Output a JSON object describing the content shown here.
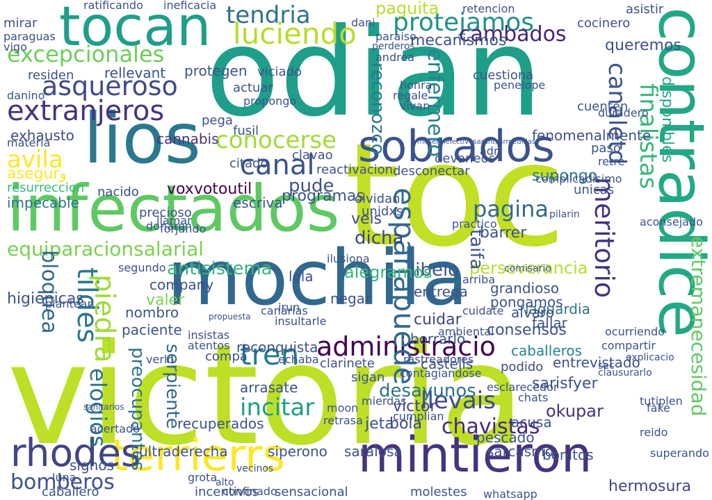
{
  "words": [
    {
      "text": "victoria",
      "color": "#bddf26",
      "vertical": false
    },
    {
      "text": "odian",
      "color": "#1f9e89",
      "vertical": false
    },
    {
      "text": "toc",
      "color": "#c2df23",
      "vertical": false
    },
    {
      "text": "mochila",
      "color": "#31688e",
      "vertical": false
    },
    {
      "text": "contradice",
      "color": "#22a884",
      "vertical": true
    },
    {
      "text": "infectados",
      "color": "#5ec962",
      "vertical": false
    },
    {
      "text": "lios",
      "color": "#2a788e",
      "vertical": false
    },
    {
      "text": "tocan",
      "color": "#1f9e89",
      "vertical": false
    },
    {
      "text": "sobrados",
      "color": "#3b528b",
      "vertical": false
    },
    {
      "text": "mintieron",
      "color": "#46337e",
      "vertical": false
    },
    {
      "text": "terrierrs",
      "color": "#fde725",
      "vertical": false
    },
    {
      "text": "rhodes",
      "color": "#414487",
      "vertical": false
    },
    {
      "text": "extranjeros",
      "color": "#46337e",
      "vertical": false
    },
    {
      "text": "excepcionales",
      "color": "#6ece58",
      "vertical": false
    },
    {
      "text": "asqueroso",
      "color": "#3e4a89",
      "vertical": false
    },
    {
      "text": "equiparacionsalarial",
      "color": "#7ad151",
      "vertical": false
    },
    {
      "text": "luciendo",
      "color": "#b5de2b",
      "vertical": false
    },
    {
      "text": "tendria",
      "color": "#2c728e",
      "vertical": false
    },
    {
      "text": "protejamos",
      "color": "#21918c",
      "vertical": false
    },
    {
      "text": "conocerse",
      "color": "#a0da39",
      "vertical": false
    },
    {
      "text": "canal",
      "color": "#3b528b",
      "vertical": false
    },
    {
      "text": "avila",
      "color": "#fde725",
      "vertical": false
    },
    {
      "text": "administracio",
      "color": "#440154",
      "vertical": false
    },
    {
      "text": "tren",
      "color": "#2a788e",
      "vertical": false
    },
    {
      "text": "incitar",
      "color": "#1f9e89",
      "vertical": false
    },
    {
      "text": "llevais",
      "color": "#3e4a89",
      "vertical": false
    },
    {
      "text": "bomberos",
      "color": "#3b528b",
      "vertical": false
    },
    {
      "text": "espanapuede",
      "color": "#31688e",
      "vertical": true
    },
    {
      "text": "cambados",
      "color": "#482475",
      "vertical": false
    },
    {
      "text": "mecanismos",
      "color": "#3b528b",
      "vertical": false
    },
    {
      "text": "enfermero",
      "color": "#26828e",
      "vertical": true
    },
    {
      "text": "reconozco",
      "color": "#2a788e",
      "vertical": true
    },
    {
      "text": "finalistas",
      "color": "#35b779",
      "vertical": true
    },
    {
      "text": "canaletd",
      "color": "#3b528b",
      "vertical": true
    },
    {
      "text": "pagina",
      "color": "#31688e",
      "vertical": false
    },
    {
      "text": "perseverancia",
      "color": "#b5de2b",
      "vertical": false
    },
    {
      "text": "antisistema",
      "color": "#35b779",
      "vertical": false
    },
    {
      "text": "voxvotoutil",
      "color": "#440154",
      "vertical": false
    },
    {
      "text": "supongo",
      "color": "#2c728e",
      "vertical": false
    },
    {
      "text": "paguita",
      "color": "#b5de2b",
      "vertical": false
    },
    {
      "text": "chavistas",
      "color": "#482878",
      "vertical": false
    },
    {
      "text": "desayunos",
      "color": "#2c728e",
      "vertical": false
    },
    {
      "text": "hermosura",
      "color": "#414487",
      "vertical": false
    },
    {
      "text": "tildes",
      "color": "#2a788e",
      "vertical": true
    },
    {
      "text": "bloquea",
      "color": "#31688e",
      "vertical": true
    },
    {
      "text": "piedra",
      "color": "#a0da39",
      "vertical": true
    },
    {
      "text": "elogios",
      "color": "#2c728e",
      "vertical": true
    },
    {
      "text": "pude",
      "color": "#3b528b",
      "vertical": false
    },
    {
      "text": "dicha",
      "color": "#414487",
      "vertical": false
    },
    {
      "text": "libelo",
      "color": "#3b528b",
      "vertical": false
    },
    {
      "text": "veis",
      "color": "#3e4a89",
      "vertical": false
    },
    {
      "text": "higienicas",
      "color": "#3b528b",
      "vertical": false
    },
    {
      "text": "exhausto",
      "color": "#3e4a89",
      "vertical": false
    },
    {
      "text": "cannabis",
      "color": "#46337e",
      "vertical": false
    },
    {
      "text": "asegurو",
      "color": "#fde725",
      "vertical": false
    },
    {
      "text": "resurreccion",
      "color": "#35b779",
      "vertical": false
    },
    {
      "text": "precioso",
      "color": "#3b528b",
      "vertical": false
    },
    {
      "text": "impecable",
      "color": "#2c728e",
      "vertical": false
    },
    {
      "text": "nacido",
      "color": "#3e4a89",
      "vertical": false
    },
    {
      "text": "rellevant",
      "color": "#3b528b",
      "vertical": false
    },
    {
      "text": "meritorio",
      "color": "#46337e",
      "vertical": true
    },
    {
      "text": "extremanecesidad",
      "color": "#5ec962",
      "vertical": true
    },
    {
      "text": "disponibles",
      "color": "#22a884",
      "vertical": true
    },
    {
      "text": "consensos",
      "color": "#3b528b",
      "vertical": false
    },
    {
      "text": "alegramos",
      "color": "#35b779",
      "vertical": false
    },
    {
      "text": "serpiente",
      "color": "#31688e",
      "vertical": true
    },
    {
      "text": "preocupantes",
      "color": "#2c728e",
      "vertical": true
    },
    {
      "text": "caballeros",
      "color": "#26828e",
      "vertical": false
    },
    {
      "text": "fenomenalmente",
      "color": "#3b528b",
      "vertical": false
    },
    {
      "text": "sarisfyer",
      "color": "#3b528b",
      "vertical": false
    },
    {
      "text": "okupar",
      "color": "#46337e",
      "vertical": false
    },
    {
      "text": "laguardia",
      "color": "#2c728e",
      "vertical": false
    },
    {
      "text": "fallar",
      "color": "#3b528b",
      "vertical": false
    },
    {
      "text": "cuidar",
      "color": "#414487",
      "vertical": false
    },
    {
      "text": "grandioso",
      "color": "#3b528b",
      "vertical": false
    },
    {
      "text": "pongamos",
      "color": "#3b528b",
      "vertical": false
    },
    {
      "text": "podido",
      "color": "#3e4a89",
      "vertical": false
    },
    {
      "text": "entrevistado",
      "color": "#3b528b",
      "vertical": false
    },
    {
      "text": "castells",
      "color": "#3b528b",
      "vertical": false
    },
    {
      "text": "bola",
      "color": "#414487",
      "vertical": false
    },
    {
      "text": "jeta",
      "color": "#3b528b",
      "vertical": false
    },
    {
      "text": "victor",
      "color": "#414487",
      "vertical": false
    },
    {
      "text": "sarcasmo",
      "color": "#3b528b",
      "vertical": false
    },
    {
      "text": "bonitos",
      "color": "#3b528b",
      "vertical": false
    },
    {
      "text": "pescado",
      "color": "#3b528b",
      "vertical": false
    },
    {
      "text": "acusa",
      "color": "#3b528b",
      "vertical": false
    },
    {
      "text": "siperono",
      "color": "#3b528b",
      "vertical": false
    },
    {
      "text": "saralosa",
      "color": "#3b528b",
      "vertical": false
    },
    {
      "text": "ultraderecha",
      "color": "#3b528b",
      "vertical": false
    },
    {
      "text": "signos",
      "color": "#3b528b",
      "vertical": false
    },
    {
      "text": "recuperados",
      "color": "#3b528b",
      "vertical": false
    },
    {
      "text": "arrasate",
      "color": "#3b528b",
      "vertical": false
    },
    {
      "text": "incentivos",
      "color": "#3b528b",
      "vertical": false
    },
    {
      "text": "sensacional",
      "color": "#3b528b",
      "vertical": false
    },
    {
      "text": "molestes",
      "color": "#3b528b",
      "vertical": false
    },
    {
      "text": "caballero",
      "color": "#3b528b",
      "vertical": false
    },
    {
      "text": "taifa",
      "color": "#3b528b",
      "vertical": true
    },
    {
      "text": "barrer",
      "color": "#3b528b",
      "vertical": false
    },
    {
      "text": "paciente",
      "color": "#3b528b",
      "vertical": false
    },
    {
      "text": "nombro",
      "color": "#3b528b",
      "vertical": false
    },
    {
      "text": "valer",
      "color": "#7ad151",
      "vertical": false
    },
    {
      "text": "company",
      "color": "#3b528b",
      "vertical": false
    },
    {
      "text": "reconquista",
      "color": "#3b528b",
      "vertical": false
    },
    {
      "text": "compa",
      "color": "#3b528b",
      "vertical": false
    },
    {
      "text": "borrarlo",
      "color": "#3b528b",
      "vertical": false
    },
    {
      "text": "alvaro",
      "color": "#3b528b",
      "vertical": false
    },
    {
      "text": "entrega",
      "color": "#3b528b",
      "vertical": false
    },
    {
      "text": "negar",
      "color": "#3b528b",
      "vertical": false
    },
    {
      "text": "lola",
      "color": "#3b528b",
      "vertical": false
    },
    {
      "text": "escriva",
      "color": "#3b528b",
      "vertical": false
    },
    {
      "text": "programas",
      "color": "#3b528b",
      "vertical": false
    },
    {
      "text": "olvidan",
      "color": "#3b528b",
      "vertical": false
    },
    {
      "text": "unidxs",
      "color": "#3b528b",
      "vertical": false
    },
    {
      "text": "reactivacion",
      "color": "#3b528b",
      "vertical": false
    },
    {
      "text": "desconectar",
      "color": "#3b528b",
      "vertical": false
    },
    {
      "text": "clavao",
      "color": "#3b528b",
      "vertical": false
    },
    {
      "text": "citado",
      "color": "#3b528b",
      "vertical": false
    },
    {
      "text": "fusil",
      "color": "#3b528b",
      "vertical": false
    },
    {
      "text": "pega",
      "color": "#3b528b",
      "vertical": false
    },
    {
      "text": "actuar",
      "color": "#3b528b",
      "vertical": false
    },
    {
      "text": "propongo",
      "color": "#3b528b",
      "vertical": false
    },
    {
      "text": "viciado",
      "color": "#3b528b",
      "vertical": false
    },
    {
      "text": "protegen",
      "color": "#3b528b",
      "vertical": false
    },
    {
      "text": "residen",
      "color": "#3b528b",
      "vertical": false
    },
    {
      "text": "mirar",
      "color": "#3b528b",
      "vertical": false
    },
    {
      "text": "vigo",
      "color": "#3b528b",
      "vertical": false
    },
    {
      "text": "paraguas",
      "color": "#3b528b",
      "vertical": false
    },
    {
      "text": "ratificando",
      "color": "#3b528b",
      "vertical": false
    },
    {
      "text": "ineficacia",
      "color": "#3b528b",
      "vertical": false
    },
    {
      "text": "retencion",
      "color": "#3b528b",
      "vertical": false
    },
    {
      "text": "cocinero",
      "color": "#3b528b",
      "vertical": false
    },
    {
      "text": "asistir",
      "color": "#3b528b",
      "vertical": false
    },
    {
      "text": "dani",
      "color": "#3b528b",
      "vertical": false
    },
    {
      "text": "paraiso",
      "color": "#3b528b",
      "vertical": false
    },
    {
      "text": "perderos",
      "color": "#3b528b",
      "vertical": false
    },
    {
      "text": "andrea",
      "color": "#3b528b",
      "vertical": false
    },
    {
      "text": "cuestiona",
      "color": "#3b528b",
      "vertical": false
    },
    {
      "text": "penelope",
      "color": "#3b528b",
      "vertical": false
    },
    {
      "text": "queremos",
      "color": "#3b528b",
      "vertical": false
    },
    {
      "text": "cuenten",
      "color": "#3b528b",
      "vertical": false
    },
    {
      "text": "duradero",
      "color": "#3b528b",
      "vertical": false
    },
    {
      "text": "honra",
      "color": "#3b528b",
      "vertical": false
    },
    {
      "text": "regale",
      "color": "#3b528b",
      "vertical": false
    },
    {
      "text": "vivan",
      "color": "#3b528b",
      "vertical": false
    },
    {
      "text": "danino",
      "color": "#3b528b",
      "vertical": false
    },
    {
      "text": "materia",
      "color": "#3b528b",
      "vertical": false
    },
    {
      "text": "devaneos",
      "color": "#3b528b",
      "vertical": false
    },
    {
      "text": "adri",
      "color": "#3b528b",
      "vertical": false
    },
    {
      "text": "paso",
      "color": "#3b528b",
      "vertical": false
    },
    {
      "text": "retre",
      "color": "#3b528b",
      "vertical": false
    },
    {
      "text": "unicas",
      "color": "#3b528b",
      "vertical": false
    },
    {
      "text": "complicadisimo",
      "color": "#3b528b",
      "vertical": false
    },
    {
      "text": "sigan",
      "color": "#3b528b",
      "vertical": false
    },
    {
      "text": "esclarecedor",
      "color": "#3b528b",
      "vertical": false
    },
    {
      "text": "echaba",
      "color": "#3b528b",
      "vertical": false
    },
    {
      "text": "clarinete",
      "color": "#3b528b",
      "vertical": false
    },
    {
      "text": "ilusiona",
      "color": "#3b528b",
      "vertical": false
    },
    {
      "text": "arriba",
      "color": "#3b528b",
      "vertical": false
    },
    {
      "text": "irun",
      "color": "#3b528b",
      "vertical": false
    },
    {
      "text": "insultarle",
      "color": "#3b528b",
      "vertical": false
    },
    {
      "text": "canarias",
      "color": "#3b528b",
      "vertical": false
    },
    {
      "text": "insistas",
      "color": "#3b528b",
      "vertical": false
    },
    {
      "text": "atentos",
      "color": "#3b528b",
      "vertical": false
    },
    {
      "text": "verlo",
      "color": "#3b528b",
      "vertical": false
    },
    {
      "text": "segundo",
      "color": "#3b528b",
      "vertical": false
    },
    {
      "text": "acertado",
      "color": "#3b528b",
      "vertical": false
    },
    {
      "text": "donaron",
      "color": "#3b528b",
      "vertical": false
    },
    {
      "text": "llamar",
      "color": "#3b528b",
      "vertical": false
    },
    {
      "text": "forjando",
      "color": "#3b528b",
      "vertical": false
    },
    {
      "text": "plantean",
      "color": "#3b528b",
      "vertical": false
    },
    {
      "text": "whatsapp",
      "color": "#3b528b",
      "vertical": false
    },
    {
      "text": "luna",
      "color": "#3b528b",
      "vertical": false
    },
    {
      "text": "tutiplen",
      "color": "#3b528b",
      "vertical": false
    },
    {
      "text": "superando",
      "color": "#3b528b",
      "vertical": false
    },
    {
      "text": "reido",
      "color": "#3b528b",
      "vertical": false
    },
    {
      "text": "fake",
      "color": "#3b528b",
      "vertical": false
    },
    {
      "text": "chats",
      "color": "#3b528b",
      "vertical": false
    },
    {
      "text": "mierdas",
      "color": "#3b528b",
      "vertical": false
    },
    {
      "text": "contagiandose",
      "color": "#3b528b",
      "vertical": false
    },
    {
      "text": "rastreadores",
      "color": "#3b528b",
      "vertical": false
    },
    {
      "text": "cumplian",
      "color": "#3b528b",
      "vertical": false
    },
    {
      "text": "retrasa",
      "color": "#3b528b",
      "vertical": false
    },
    {
      "text": "moon",
      "color": "#3b528b",
      "vertical": false
    },
    {
      "text": "confinado",
      "color": "#3b528b",
      "vertical": false
    },
    {
      "text": "grota",
      "color": "#3b528b",
      "vertical": false
    },
    {
      "text": "alto",
      "color": "#3b528b",
      "vertical": false
    },
    {
      "text": "vecinos",
      "color": "#3b528b",
      "vertical": false
    },
    {
      "text": "ocurriendo",
      "color": "#3b528b",
      "vertical": false
    },
    {
      "text": "compartir",
      "color": "#3b528b",
      "vertical": false
    },
    {
      "text": "pilarin",
      "color": "#3b528b",
      "vertical": false
    },
    {
      "text": "aconsejado",
      "color": "#3b528b",
      "vertical": false
    },
    {
      "text": "practico",
      "color": "#3b528b",
      "vertical": false
    },
    {
      "text": "comisario",
      "color": "#3b528b",
      "vertical": false
    },
    {
      "text": "cuidate",
      "color": "#3b528b",
      "vertical": false
    },
    {
      "text": "ambiental",
      "color": "#3b528b",
      "vertical": false
    },
    {
      "text": "clausurarlo",
      "color": "#3b528b",
      "vertical": false
    },
    {
      "text": "sec",
      "color": "#3b528b",
      "vertical": false
    },
    {
      "text": "explicacio",
      "color": "#3b528b",
      "vertical": false
    },
    {
      "text": "mesermelectivosarantesrmedidas",
      "color": "#3b528b",
      "vertical": false
    },
    {
      "text": "sanitarios",
      "color": "#3b528b",
      "vertical": false
    },
    {
      "text": "propuesta",
      "color": "#3b528b",
      "vertical": false
    }
  ]
}
